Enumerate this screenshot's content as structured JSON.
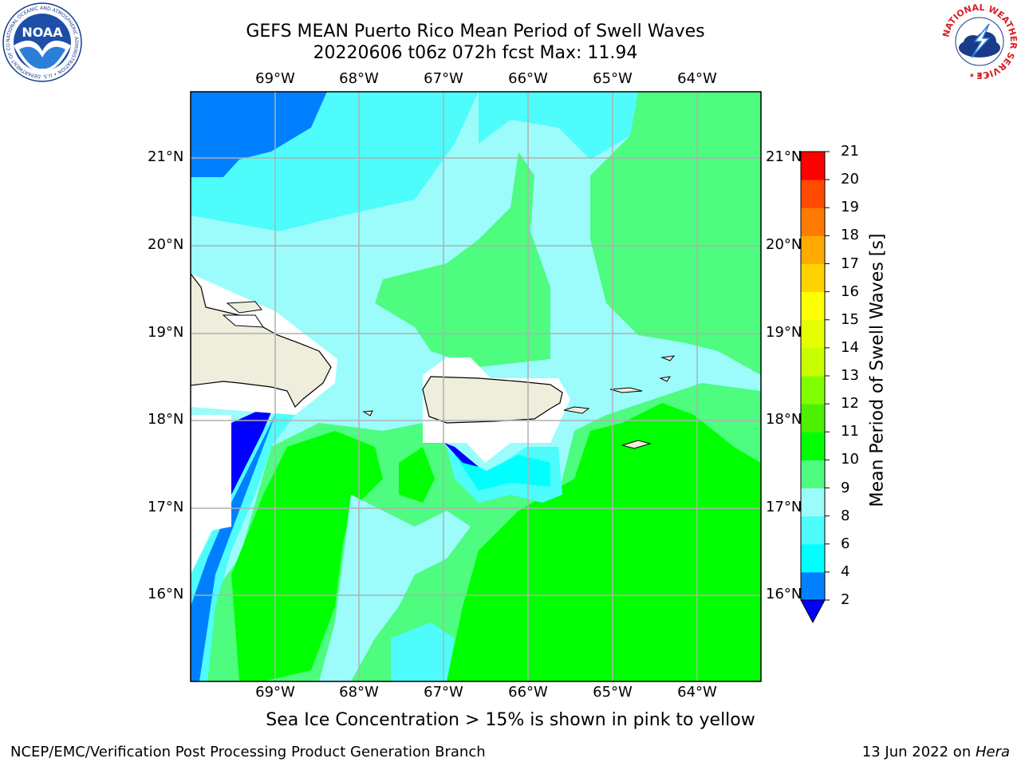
{
  "header": {
    "title_line1": "GEFS MEAN Puerto Rico Mean Period of Swell Waves",
    "title_line2": "20220606 t06z 072h fcst   Max: 11.94"
  },
  "map": {
    "lon_labels": [
      "69°W",
      "68°W",
      "67°W",
      "66°W",
      "65°W",
      "64°W"
    ],
    "lat_labels": [
      "21°N",
      "20°N",
      "19°N",
      "18°N",
      "17°N",
      "16°N"
    ],
    "land_color": "#efeddc",
    "ocean_color": "#9cfcfc"
  },
  "colorbar": {
    "label": "Mean Period of Swell Waves [s]",
    "ticks": [
      "2",
      "4",
      "6",
      "8",
      "9",
      "10",
      "11",
      "12",
      "13",
      "14",
      "15",
      "16",
      "17",
      "18",
      "19",
      "20",
      "21"
    ],
    "colors": [
      "#0000ff",
      "#0080ff",
      "#00ffff",
      "#4efcfc",
      "#9cfcfc",
      "#4efc80",
      "#00ff00",
      "#4cf000",
      "#80ff00",
      "#c8ff00",
      "#e6ff00",
      "#ffff00",
      "#ffd200",
      "#ffaa00",
      "#ff7a00",
      "#ff4a00",
      "#ff0000"
    ],
    "extend_color": "#0000ff"
  },
  "footer": {
    "note": "Sea Ice Concentration > 15% is shown in pink to yellow",
    "left": "NCEP/EMC/Verification Post Processing Product Generation Branch",
    "right_date": "13 Jun 2022 on ",
    "right_host": "Hera"
  },
  "logos": {
    "noaa_text": "NOAA",
    "noaa_ring_text": "NATIONAL OCEANIC AND ATMOSPHERIC ADMINISTRATION • U.S. DEPARTMENT OF COMMERCE",
    "nws_ring_text": "NATIONAL WEATHER SERVICE"
  }
}
